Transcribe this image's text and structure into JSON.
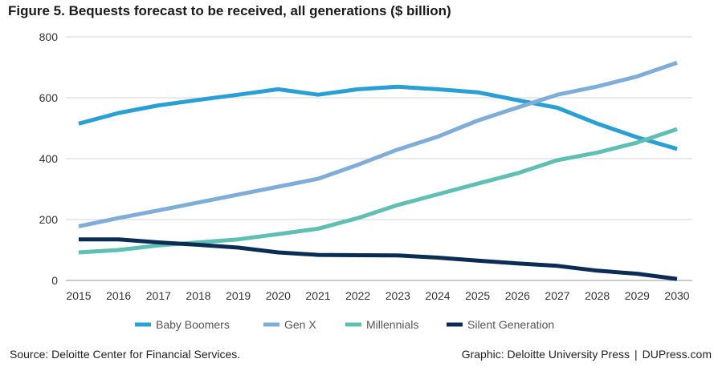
{
  "title": "Figure 5. Bequests forecast to be received, all generations ($ billion)",
  "footer": {
    "source": "Source: Deloitte Center for Financial Services.",
    "graphic": "Graphic: Deloitte University Press",
    "separator": "|",
    "site": "DUPress.com"
  },
  "chart_data": {
    "type": "line",
    "title": "Figure 5. Bequests forecast to be received, all generations ($ billion)",
    "xlabel": "",
    "ylabel": "",
    "x": [
      2015,
      2016,
      2017,
      2018,
      2019,
      2020,
      2021,
      2022,
      2023,
      2024,
      2025,
      2026,
      2027,
      2028,
      2029,
      2030
    ],
    "ylim": [
      0,
      800
    ],
    "yticks": [
      0,
      200,
      400,
      600,
      800
    ],
    "grid": true,
    "legend": "bottom",
    "series": [
      {
        "name": "Baby Boomers",
        "color": "#2a9fd6",
        "values": [
          515,
          550,
          575,
          593,
          610,
          628,
          610,
          628,
          636,
          628,
          618,
          592,
          567,
          515,
          470,
          432
        ]
      },
      {
        "name": "Gen X",
        "color": "#7fadd9",
        "values": [
          178,
          205,
          230,
          256,
          282,
          308,
          334,
          380,
          430,
          472,
          525,
          568,
          610,
          637,
          670,
          715
        ]
      },
      {
        "name": "Millennials",
        "color": "#5ebfb2",
        "values": [
          92,
          100,
          115,
          125,
          135,
          152,
          170,
          205,
          248,
          283,
          318,
          352,
          395,
          420,
          453,
          497
        ]
      },
      {
        "name": "Silent Generation",
        "color": "#0b2d55",
        "values": [
          135,
          135,
          125,
          117,
          108,
          92,
          84,
          83,
          82,
          75,
          65,
          56,
          48,
          32,
          22,
          5
        ]
      }
    ]
  }
}
